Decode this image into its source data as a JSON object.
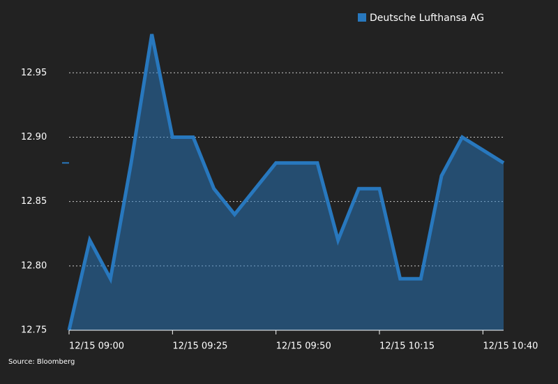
{
  "chart_data": {
    "type": "area",
    "source": "Source: Bloomberg",
    "categories": [
      "12/15 09:00",
      null,
      null,
      null,
      null,
      "12/15 09:25",
      null,
      null,
      null,
      null,
      "12/15 09:50",
      null,
      null,
      null,
      null,
      "12/15 10:15",
      null,
      null,
      null,
      null,
      "12/15 10:40",
      null
    ],
    "series": [
      {
        "name": "Deutsche Lufthansa AG",
        "color": "#2878be",
        "values": [
          12.75,
          12.82,
          12.79,
          12.88,
          12.98,
          12.9,
          12.9,
          12.86,
          12.84,
          12.86,
          12.88,
          12.88,
          12.88,
          12.82,
          12.86,
          12.86,
          12.79,
          12.79,
          12.87,
          12.9,
          12.89,
          12.88
        ]
      }
    ],
    "ylim": [
      12.75,
      12.98
    ],
    "yticks": [
      12.75,
      {
        "value": 12.8,
        "label": "12.80"
      },
      12.85,
      {
        "value": 12.9,
        "label": "12.90"
      },
      12.95
    ],
    "grid": true,
    "legend": "top-right"
  }
}
